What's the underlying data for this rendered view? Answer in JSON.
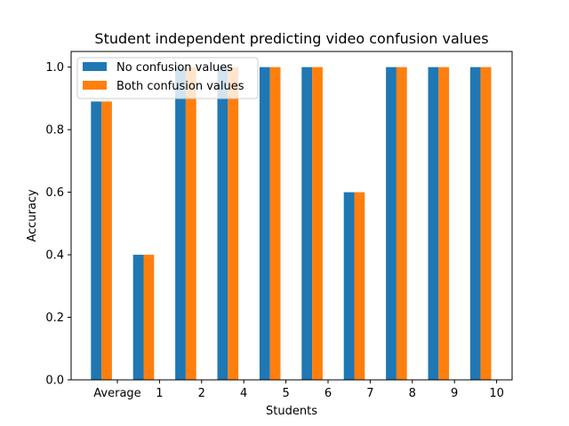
{
  "chart_data": {
    "type": "bar",
    "title": "Student independent predicting video confusion values",
    "xlabel": "Students",
    "ylabel": "Accuracy",
    "categories": [
      "Average",
      "1",
      "2",
      "4",
      "5",
      "6",
      "7",
      "8",
      "9",
      "10"
    ],
    "series": [
      {
        "name": "No confusion values",
        "color": "#1f77b4",
        "values": [
          0.89,
          0.4,
          1.0,
          1.0,
          1.0,
          1.0,
          0.6,
          1.0,
          1.0,
          1.0
        ]
      },
      {
        "name": "Both confusion values",
        "color": "#ff7f0e",
        "values": [
          0.89,
          0.4,
          1.0,
          1.0,
          1.0,
          1.0,
          0.6,
          1.0,
          1.0,
          1.0
        ]
      }
    ],
    "ylim": [
      0,
      1.05
    ],
    "yticks": [
      "0.0",
      "0.2",
      "0.4",
      "0.6",
      "0.8",
      "1.0"
    ],
    "grid": false,
    "legend_position": "top-left"
  }
}
